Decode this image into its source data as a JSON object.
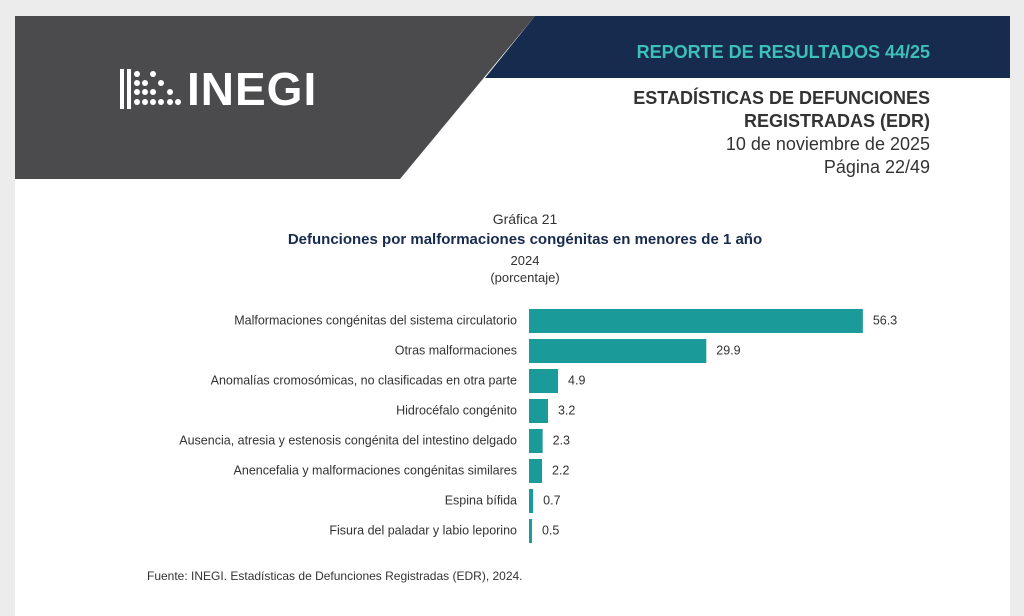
{
  "header": {
    "logo": "INEGI",
    "report": "REPORTE DE RESULTADOS 44/25",
    "title_line1": "ESTADÍSTICAS DE DEFUNCIONES",
    "title_line2": "REGISTRADAS (EDR)",
    "date": "10 de noviembre de 2025",
    "page": "Página 22/49"
  },
  "chart_data": {
    "type": "bar",
    "orientation": "horizontal",
    "label": "Gráfica 21",
    "title": "Defunciones por malformaciones congénitas en menores de 1 año",
    "subtitle": "2024",
    "unit": "(porcentaje)",
    "categories": [
      "Malformaciones congénitas del sistema circulatorio",
      "Otras malformaciones",
      "Anomalías cromosómicas, no clasificadas en otra parte",
      "Hidrocéfalo congénito",
      "Ausencia, atresia y estenosis congénita del intestino delgado",
      "Anencefalia y malformaciones congénitas similares",
      "Espina bífida",
      "Fisura del paladar y labio leporino"
    ],
    "values": [
      56.3,
      29.9,
      4.9,
      3.2,
      2.3,
      2.2,
      0.7,
      0.5
    ],
    "value_labels": [
      "56.3",
      "29.9",
      "4.9",
      "3.2",
      "2.3",
      "2.2",
      "0.7",
      "0.5"
    ],
    "color": "#1a9a99",
    "source": "Fuente: INEGI. Estadísticas de Defunciones Registradas (EDR), 2024."
  }
}
